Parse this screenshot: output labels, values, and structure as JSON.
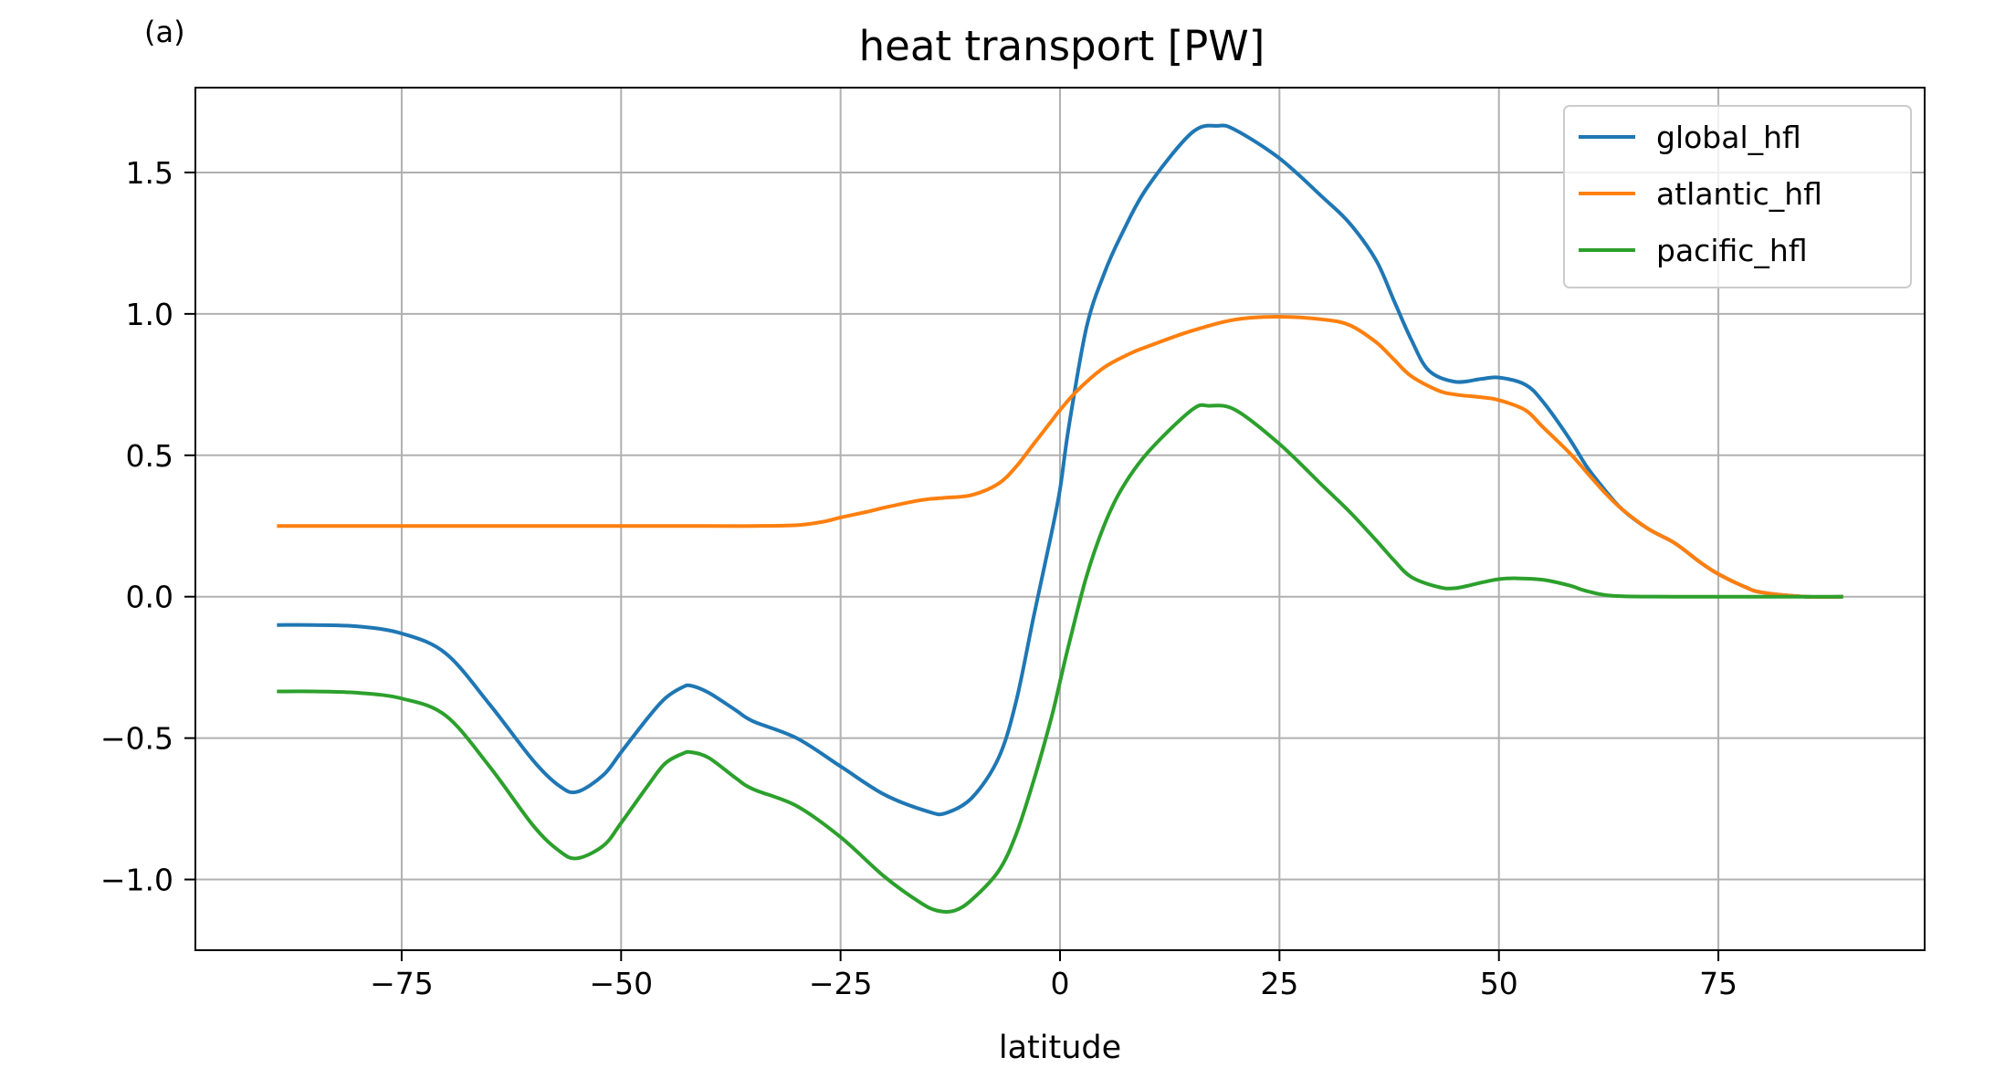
{
  "panel_label": "(a)",
  "chart_data": {
    "type": "line",
    "title": "heat transport [PW]",
    "xlabel": "latitude",
    "ylabel": "",
    "xlim": [
      -98.5,
      98.5
    ],
    "ylim": [
      -1.25,
      1.8
    ],
    "xticks": [
      -75,
      -50,
      -25,
      0,
      25,
      50,
      75
    ],
    "xtick_labels": [
      "−75",
      "−50",
      "−25",
      "0",
      "25",
      "50",
      "75"
    ],
    "yticks": [
      -1.0,
      -0.5,
      0.0,
      0.5,
      1.0,
      1.5
    ],
    "ytick_labels": [
      "−1.0",
      "−0.5",
      "0.0",
      "0.5",
      "1.0",
      "1.5"
    ],
    "grid": true,
    "legend_position": "top-right",
    "series": [
      {
        "name": "global_hfl",
        "color": "#1f77b4",
        "x": [
          -89,
          -85,
          -80,
          -75,
          -70,
          -65,
          -60,
          -57,
          -55,
          -52,
          -50,
          -47,
          -45,
          -43,
          -42,
          -40,
          -37,
          -35,
          -30,
          -25,
          -20,
          -15,
          -13,
          -10,
          -7,
          -5,
          -3,
          -1,
          0,
          1,
          3,
          5,
          7,
          10,
          15,
          18,
          20,
          25,
          30,
          33,
          36,
          38,
          40,
          42,
          45,
          48,
          50,
          53,
          55,
          58,
          60,
          62,
          64,
          67,
          70,
          73,
          75,
          78,
          80,
          85,
          89
        ],
        "y": [
          -0.1,
          -0.1,
          -0.105,
          -0.13,
          -0.2,
          -0.38,
          -0.58,
          -0.67,
          -0.69,
          -0.63,
          -0.55,
          -0.43,
          -0.36,
          -0.32,
          -0.315,
          -0.34,
          -0.4,
          -0.44,
          -0.5,
          -0.6,
          -0.7,
          -0.76,
          -0.765,
          -0.71,
          -0.57,
          -0.37,
          -0.07,
          0.22,
          0.38,
          0.6,
          0.95,
          1.14,
          1.28,
          1.45,
          1.64,
          1.665,
          1.65,
          1.55,
          1.41,
          1.32,
          1.19,
          1.05,
          0.91,
          0.8,
          0.76,
          0.77,
          0.775,
          0.75,
          0.69,
          0.56,
          0.46,
          0.38,
          0.31,
          0.24,
          0.19,
          0.12,
          0.08,
          0.035,
          0.015,
          0.0,
          0.0
        ]
      },
      {
        "name": "atlantic_hfl",
        "color": "#ff7f0e",
        "x": [
          -89,
          -80,
          -70,
          -60,
          -50,
          -40,
          -35,
          -30,
          -27,
          -25,
          -22,
          -20,
          -17,
          -15,
          -13,
          -10,
          -7,
          -5,
          -3,
          -1,
          0,
          2,
          5,
          8,
          10,
          15,
          20,
          25,
          30,
          33,
          36,
          38,
          40,
          43,
          45,
          48,
          50,
          53,
          55,
          58,
          60,
          62,
          64,
          67,
          70,
          73,
          75,
          78,
          80,
          85,
          89
        ],
        "y": [
          0.25,
          0.25,
          0.25,
          0.25,
          0.25,
          0.25,
          0.25,
          0.253,
          0.265,
          0.28,
          0.3,
          0.315,
          0.335,
          0.345,
          0.35,
          0.36,
          0.4,
          0.46,
          0.54,
          0.62,
          0.66,
          0.73,
          0.81,
          0.86,
          0.885,
          0.94,
          0.98,
          0.99,
          0.98,
          0.96,
          0.9,
          0.84,
          0.78,
          0.73,
          0.715,
          0.705,
          0.695,
          0.66,
          0.6,
          0.51,
          0.44,
          0.37,
          0.31,
          0.24,
          0.19,
          0.12,
          0.08,
          0.035,
          0.015,
          0.0,
          0.0
        ]
      },
      {
        "name": "pacific_hfl",
        "color": "#2ca02c",
        "x": [
          -89,
          -85,
          -80,
          -75,
          -70,
          -65,
          -60,
          -57,
          -55,
          -52,
          -50,
          -47,
          -45,
          -43,
          -42,
          -40,
          -37,
          -35,
          -30,
          -25,
          -20,
          -16,
          -14,
          -12,
          -10,
          -7,
          -5,
          -3,
          -1,
          0,
          1,
          3,
          5,
          7,
          10,
          15,
          17,
          20,
          25,
          30,
          33,
          36,
          38,
          40,
          43,
          45,
          48,
          50,
          52,
          55,
          58,
          60,
          63,
          70,
          80,
          89
        ],
        "y": [
          -0.335,
          -0.335,
          -0.34,
          -0.36,
          -0.42,
          -0.6,
          -0.81,
          -0.9,
          -0.925,
          -0.88,
          -0.8,
          -0.67,
          -0.59,
          -0.555,
          -0.55,
          -0.57,
          -0.64,
          -0.68,
          -0.74,
          -0.85,
          -0.99,
          -1.08,
          -1.11,
          -1.11,
          -1.07,
          -0.97,
          -0.84,
          -0.65,
          -0.43,
          -0.3,
          -0.17,
          0.07,
          0.25,
          0.38,
          0.51,
          0.66,
          0.675,
          0.66,
          0.54,
          0.39,
          0.3,
          0.2,
          0.13,
          0.07,
          0.035,
          0.03,
          0.05,
          0.062,
          0.065,
          0.06,
          0.04,
          0.02,
          0.003,
          0.0,
          0.0,
          0.0
        ]
      }
    ]
  }
}
